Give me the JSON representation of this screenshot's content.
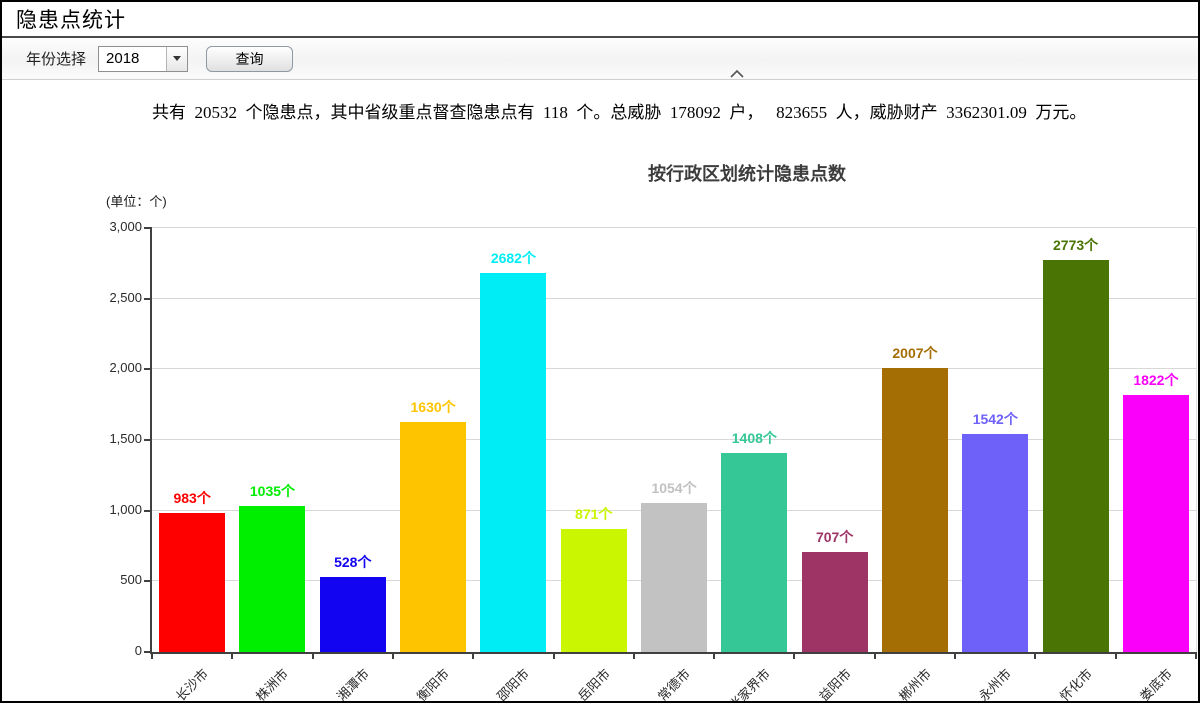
{
  "window": {
    "title": "隐患点统计"
  },
  "filter": {
    "year_label": "年份选择",
    "year_value": "2018",
    "query_label": "查询"
  },
  "summary": {
    "text": "共有  20532  个隐患点，其中省级重点督查隐患点有  118  个。总威胁  178092  户，   823655  人，威胁财产  3362301.09  万元。"
  },
  "icons": {
    "dropdown_arrow": "caret-down",
    "collapse": "chevron-up"
  },
  "chart_data": {
    "type": "bar",
    "title": "按行政区划统计隐患点数",
    "unit_label": "(单位：个)",
    "categories": [
      "长沙市",
      "株洲市",
      "湘潭市",
      "衡阳市",
      "邵阳市",
      "岳阳市",
      "常德市",
      "张家界市",
      "益阳市",
      "郴州市",
      "永州市",
      "怀化市",
      "娄底市"
    ],
    "values": [
      983,
      1035,
      528,
      1630,
      2682,
      871,
      1054,
      1408,
      707,
      2007,
      1542,
      2773,
      1822
    ],
    "value_suffix": "个",
    "bar_colors": [
      "#ff0000",
      "#00ee00",
      "#1203f0",
      "#ffc400",
      "#00edf5",
      "#c9f600",
      "#c2c2c2",
      "#35c795",
      "#9e3366",
      "#a56e05",
      "#6e61fa",
      "#4a7505",
      "#fa00fa"
    ],
    "xlabel": "",
    "ylabel": "个",
    "ylim": [
      0,
      3000
    ],
    "ytick_interval": 500,
    "ytick_labels": [
      "0",
      "500",
      "1,000",
      "1,500",
      "2,000",
      "2,500",
      "3,000"
    ],
    "grid": true,
    "legend_position": "none"
  }
}
